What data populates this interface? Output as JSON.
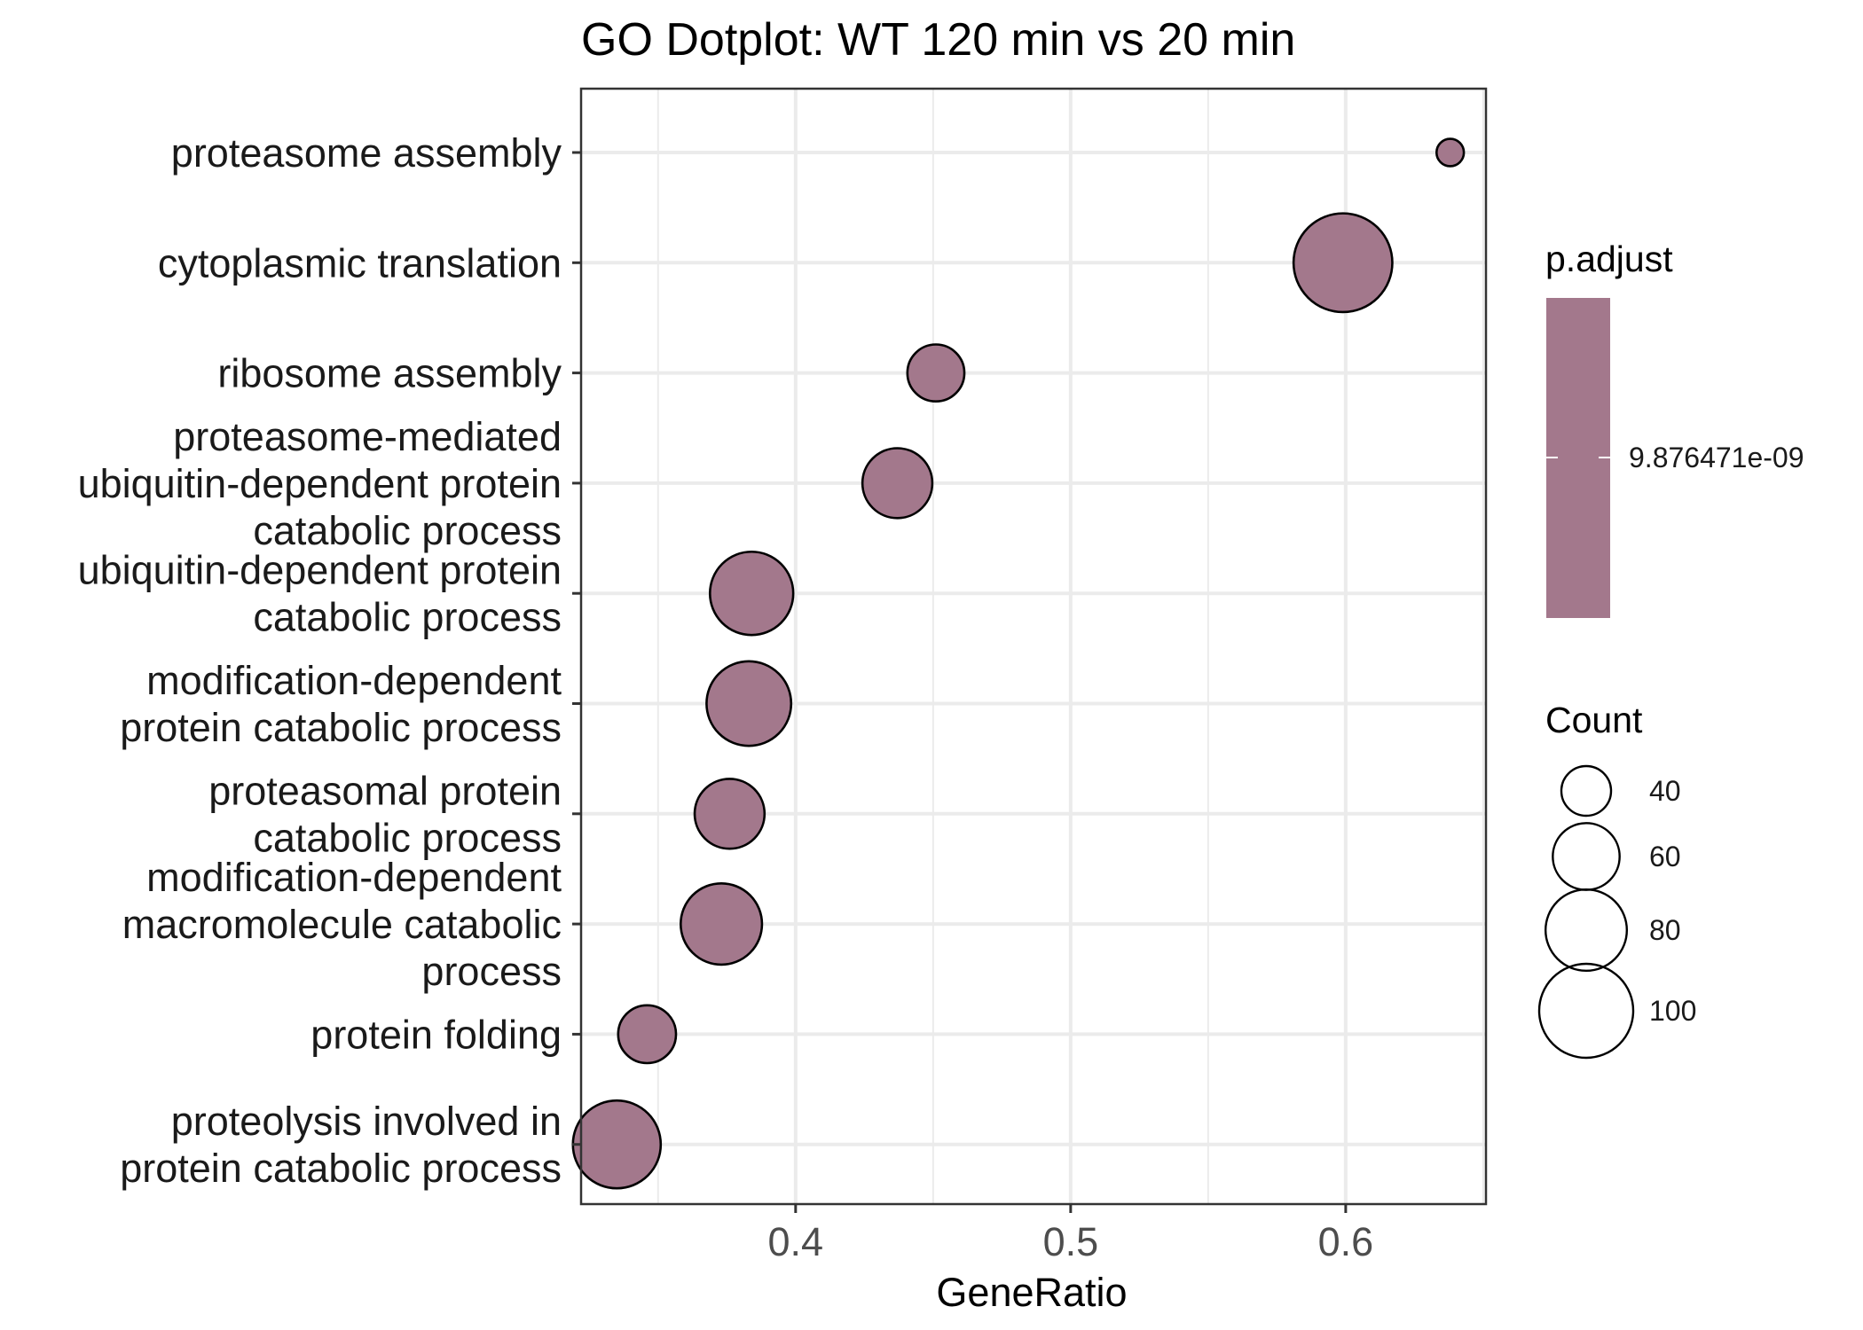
{
  "chart_data": {
    "type": "scatter",
    "title": "GO Dotplot: WT 120 min vs 20 min",
    "xlabel": "GeneRatio",
    "ylabel": "",
    "xlim": [
      0.322,
      0.651
    ],
    "xticks": [
      0.4,
      0.5,
      0.6
    ],
    "xtick_labels": [
      "0.4",
      "0.5",
      "0.6"
    ],
    "grid": true,
    "point_color": "#a3788c",
    "point_stroke": "#000000",
    "categories": [
      "proteasome assembly",
      "cytoplasmic translation",
      "ribosome assembly",
      "proteasome-mediated ubiquitin-dependent protein catabolic process",
      "ubiquitin-dependent protein catabolic process",
      "modification-dependent protein catabolic process",
      "proteasomal protein catabolic process",
      "modification-dependent macromolecule catabolic process",
      "protein folding",
      "proteolysis involved in protein catabolic process"
    ],
    "category_lines": [
      [
        "proteasome assembly"
      ],
      [
        "cytoplasmic translation"
      ],
      [
        "ribosome assembly"
      ],
      [
        "proteasome-mediated",
        "ubiquitin-dependent protein",
        "catabolic process"
      ],
      [
        "ubiquitin-dependent protein",
        "catabolic process"
      ],
      [
        "modification-dependent",
        "protein catabolic process"
      ],
      [
        "proteasomal protein",
        "catabolic process"
      ],
      [
        "modification-dependent",
        "macromolecule catabolic",
        "process"
      ],
      [
        "protein folding"
      ],
      [
        "proteolysis involved in",
        "protein catabolic process"
      ]
    ],
    "gene_ratio": [
      0.638,
      0.599,
      0.451,
      0.437,
      0.384,
      0.383,
      0.376,
      0.373,
      0.346,
      0.335
    ],
    "count": [
      20,
      108,
      48,
      64,
      83,
      85,
      64,
      80,
      49,
      90
    ],
    "p_adjust": [
      9.876471e-09,
      9.876471e-09,
      9.876471e-09,
      9.876471e-09,
      9.876471e-09,
      9.876471e-09,
      9.876471e-09,
      9.876471e-09,
      9.876471e-09,
      9.876471e-09
    ],
    "legend": {
      "color_title": "p.adjust",
      "color_label": "9.876471e-09",
      "size_title": "Count",
      "size_breaks": [
        40,
        60,
        80,
        100
      ],
      "size_labels": [
        "40",
        "60",
        "80",
        "100"
      ],
      "placement": "right"
    }
  }
}
